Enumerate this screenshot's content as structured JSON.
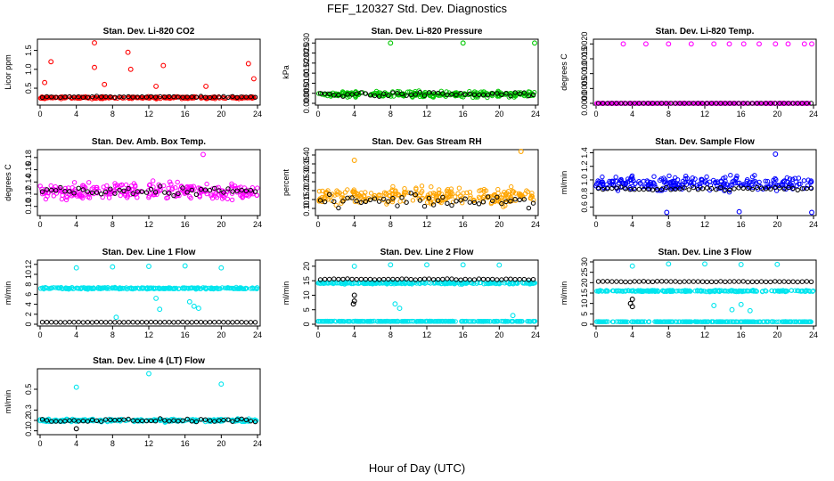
{
  "figure": {
    "title": "FEF_120327  Std. Dev. Diagnostics",
    "xlabel": "Hour of Day (UTC)",
    "xticks": [
      "0",
      "4",
      "8",
      "12",
      "16",
      "20",
      "24"
    ]
  },
  "chart_data": [
    {
      "type": "scatter",
      "title": "Stan. Dev. Li-820 CO2",
      "ylabel": "Licor ppm",
      "xlim": [
        0,
        24
      ],
      "ylim": [
        0.1,
        1.75
      ],
      "yticks": [
        0.5,
        1.0,
        1.5
      ],
      "ytick_labels": [
        "0.5",
        "1.0",
        "1.5"
      ],
      "colors": {
        "main": "#ff0000",
        "mean": "#000000"
      },
      "series": [
        {
          "role": "main",
          "color": "#ff0000",
          "baseline": 0.25,
          "spread": 0.04,
          "outliers": [
            [
              6.0,
              1.7
            ],
            [
              9.7,
              1.45
            ],
            [
              1.2,
              1.2
            ],
            [
              6.0,
              1.05
            ],
            [
              10.0,
              1.0
            ],
            [
              13.6,
              1.1
            ],
            [
              23.0,
              1.15
            ],
            [
              0.5,
              0.65
            ],
            [
              7.1,
              0.6
            ],
            [
              12.8,
              0.55
            ],
            [
              18.3,
              0.55
            ],
            [
              23.6,
              0.75
            ]
          ]
        },
        {
          "role": "mean",
          "color": "#000000",
          "baseline": 0.27,
          "spread": 0.02
        }
      ]
    },
    {
      "type": "scatter",
      "title": "Stan. Dev. Li-820 Pressure",
      "ylabel": "kPa",
      "xlim": [
        0,
        24
      ],
      "ylim": [
        0.0,
        0.031
      ],
      "yticks": [
        0.0,
        0.005,
        0.01,
        0.015,
        0.02,
        0.025,
        0.03
      ],
      "ytick_labels": [
        "0.000",
        "0.005",
        "0.010",
        "0.015",
        "0.020",
        "0.025",
        "0.030"
      ],
      "colors": {
        "main": "#00c800",
        "mean": "#000000"
      },
      "series": [
        {
          "role": "main",
          "color": "#00c800",
          "baseline": 0.0045,
          "spread": 0.002,
          "outliers": [
            [
              8.0,
              0.03
            ],
            [
              16.0,
              0.03
            ],
            [
              23.9,
              0.03
            ]
          ]
        },
        {
          "role": "mean",
          "color": "#000000",
          "baseline": 0.0045,
          "spread": 0.0015
        }
      ]
    },
    {
      "type": "scatter",
      "title": "Stan. Dev. Li-820 Temp.",
      "ylabel": "degrees C",
      "xlim": [
        0,
        24
      ],
      "ylim": [
        0.0,
        0.0021
      ],
      "yticks": [
        0.0,
        0.0005,
        0.001,
        0.0015,
        0.002
      ],
      "ytick_labels": [
        "0.0000",
        "0.0005",
        "0.0010",
        "0.0015",
        "0.0020"
      ],
      "colors": {
        "main": "#ff00ff",
        "mean": "#000000"
      },
      "series": [
        {
          "role": "main",
          "color": "#ff00ff",
          "baseline": 0.0,
          "spread": 0.0,
          "outliers": [
            [
              3.0,
              0.002
            ],
            [
              5.5,
              0.002
            ],
            [
              8.0,
              0.002
            ],
            [
              10.5,
              0.002
            ],
            [
              13.0,
              0.002
            ],
            [
              14.7,
              0.002
            ],
            [
              16.3,
              0.002
            ],
            [
              18.0,
              0.002
            ],
            [
              19.8,
              0.002
            ],
            [
              21.2,
              0.002
            ],
            [
              23.0,
              0.002
            ],
            [
              23.8,
              0.002
            ]
          ]
        },
        {
          "role": "mean",
          "color": "#000000",
          "baseline": 0.0,
          "spread": 0.0
        }
      ]
    },
    {
      "type": "scatter",
      "title": "Stan. Dev. Amb. Box Temp.",
      "ylabel": "degrees C",
      "xlim": [
        0,
        24
      ],
      "ylim": [
        0.088,
        0.19
      ],
      "yticks": [
        0.1,
        0.12,
        0.14,
        0.16,
        0.18
      ],
      "ytick_labels": [
        "0.10",
        "0.12",
        "0.14",
        "0.16",
        "0.18"
      ],
      "colors": {
        "main": "#ff00ff",
        "mean": "#000000"
      },
      "series": [
        {
          "role": "main",
          "color": "#ff00ff",
          "baseline": 0.125,
          "spread": 0.02,
          "outliers": [
            [
              18.0,
              0.185
            ]
          ]
        },
        {
          "role": "mean",
          "color": "#000000",
          "baseline": 0.125,
          "spread": 0.012
        }
      ]
    },
    {
      "type": "scatter",
      "title": "Stan. Dev. Gas Stream RH",
      "ylabel": "percent",
      "xlim": [
        0,
        24
      ],
      "ylim": [
        0.07,
        0.42
      ],
      "yticks": [
        0.1,
        0.15,
        0.2,
        0.25,
        0.3,
        0.35,
        0.4
      ],
      "ytick_labels": [
        "0.10",
        "0.15",
        "0.20",
        "0.25",
        "0.30",
        "0.35",
        "0.40"
      ],
      "colors": {
        "main": "#ffa500",
        "mean": "#000000"
      },
      "series": [
        {
          "role": "main",
          "color": "#ffa500",
          "baseline": 0.17,
          "spread": 0.07,
          "outliers": [
            [
              22.4,
              0.42
            ],
            [
              4.0,
              0.37
            ]
          ]
        },
        {
          "role": "mean",
          "color": "#000000",
          "baseline": 0.14,
          "spread": 0.05
        }
      ]
    },
    {
      "type": "scatter",
      "title": "Stan. Dev. Sample Flow",
      "ylabel": "ml/min",
      "xlim": [
        0,
        24
      ],
      "ylim": [
        0.5,
        1.42
      ],
      "yticks": [
        0.6,
        0.8,
        1.0,
        1.2,
        1.4
      ],
      "ytick_labels": [
        "0.6",
        "0.8",
        "1.0",
        "1.2",
        "1.4"
      ],
      "colors": {
        "main": "#0000ff",
        "mean": "#000000"
      },
      "series": [
        {
          "role": "main",
          "color": "#0000ff",
          "baseline": 0.95,
          "spread": 0.15,
          "outliers": [
            [
              7.8,
              0.52
            ],
            [
              15.8,
              0.53
            ],
            [
              23.8,
              0.52
            ],
            [
              19.8,
              1.38
            ]
          ]
        },
        {
          "role": "mean",
          "color": "#000000",
          "baseline": 0.87,
          "spread": 0.04
        }
      ]
    },
    {
      "type": "scatter",
      "title": "Stan. Dev. Line 1 Flow",
      "ylabel": "ml/min",
      "xlim": [
        0,
        24
      ],
      "ylim": [
        0,
        12.5
      ],
      "yticks": [
        0,
        2,
        4,
        6,
        8,
        10,
        12
      ],
      "ytick_labels": [
        "0",
        "2",
        "4",
        "6",
        "8",
        "10",
        "12"
      ],
      "colors": {
        "main": "#00e5ee",
        "mean": "#000000"
      },
      "series": [
        {
          "role": "main",
          "color": "#00e5ee",
          "baseline": 7.2,
          "spread": 0.25,
          "outliers": [
            [
              4.0,
              11.3
            ],
            [
              8.0,
              11.5
            ],
            [
              12.0,
              11.6
            ],
            [
              16.0,
              11.7
            ],
            [
              20.0,
              11.3
            ],
            [
              12.8,
              5.2
            ],
            [
              13.2,
              3.0
            ],
            [
              16.5,
              4.5
            ],
            [
              17.0,
              3.6
            ],
            [
              17.5,
              3.2
            ],
            [
              8.4,
              1.4
            ]
          ]
        },
        {
          "role": "mean",
          "color": "#000000",
          "baseline": 0.4,
          "spread": 0.05
        }
      ]
    },
    {
      "type": "scatter",
      "title": "Stan. Dev. Line 2 Flow",
      "ylabel": "ml/min",
      "xlim": [
        0,
        24
      ],
      "ylim": [
        0,
        21.5
      ],
      "yticks": [
        0,
        5,
        10,
        15,
        20
      ],
      "ytick_labels": [
        "0",
        "5",
        "10",
        "15",
        "20"
      ],
      "colors": {
        "main": "#00e5ee",
        "mean": "#000000",
        "low": "#00e5ee"
      },
      "series": [
        {
          "role": "main",
          "color": "#00e5ee",
          "baseline": 14.2,
          "spread": 0.5,
          "outliers": [
            [
              4.0,
              20.0
            ],
            [
              8.0,
              20.5
            ],
            [
              12.0,
              20.5
            ],
            [
              16.0,
              20.5
            ],
            [
              20.0,
              20.4
            ],
            [
              8.5,
              7.0
            ],
            [
              9.0,
              5.5
            ],
            [
              21.5,
              3.0
            ]
          ]
        },
        {
          "role": "mean",
          "color": "#000000",
          "baseline": 15.5,
          "spread": 0.3,
          "outliers": [
            [
              4.0,
              8.0
            ],
            [
              3.9,
              7.0
            ],
            [
              4.0,
              10.0
            ]
          ]
        },
        {
          "role": "low",
          "color": "#00e5ee",
          "baseline": 1.0,
          "spread": 0.1
        }
      ]
    },
    {
      "type": "scatter",
      "title": "Stan. Dev. Line 3 Flow",
      "ylabel": "ml/min",
      "xlim": [
        0,
        24
      ],
      "ylim": [
        0,
        30
      ],
      "yticks": [
        0,
        5,
        10,
        15,
        20,
        25,
        30
      ],
      "ytick_labels": [
        "0",
        "5",
        "10",
        "15",
        "20",
        "25",
        "30"
      ],
      "colors": {
        "main": "#00e5ee",
        "mean": "#000000",
        "low": "#00e5ee"
      },
      "series": [
        {
          "role": "main",
          "color": "#00e5ee",
          "baseline": 16.0,
          "spread": 0.5,
          "outliers": [
            [
              4.0,
              28.0
            ],
            [
              8.0,
              29.0
            ],
            [
              12.0,
              29.0
            ],
            [
              16.0,
              28.7
            ],
            [
              20.0,
              28.8
            ],
            [
              13.0,
              9.0
            ],
            [
              15.0,
              7.0
            ],
            [
              16.0,
              9.5
            ],
            [
              17.0,
              6.5
            ]
          ]
        },
        {
          "role": "mean",
          "color": "#000000",
          "baseline": 20.5,
          "spread": 0.3,
          "outliers": [
            [
              3.8,
              10.0
            ],
            [
              4.0,
              8.5
            ],
            [
              4.0,
              12.0
            ]
          ]
        },
        {
          "role": "low",
          "color": "#00e5ee",
          "baseline": 1.2,
          "spread": 0.1
        }
      ]
    },
    {
      "type": "scatter",
      "title": "Stan. Dev. Line 4 (LT) Flow",
      "ylabel": "ml/min",
      "xlim": [
        0,
        24
      ],
      "ylim": [
        0.08,
        0.68
      ],
      "yticks": [
        0.1,
        0.2,
        0.3,
        0.5
      ],
      "ytick_labels": [
        "0.1",
        "0.2",
        "0.3",
        "0.5"
      ],
      "colors": {
        "main": "#00e5ee",
        "mean": "#000000"
      },
      "series": [
        {
          "role": "main",
          "color": "#00e5ee",
          "baseline": 0.2,
          "spread": 0.02,
          "outliers": [
            [
              4.0,
              0.52
            ],
            [
              12.0,
              0.65
            ],
            [
              20.0,
              0.55
            ]
          ]
        },
        {
          "role": "mean",
          "color": "#000000",
          "baseline": 0.2,
          "spread": 0.02,
          "outliers": [
            [
              4.0,
              0.12
            ]
          ]
        }
      ]
    }
  ]
}
